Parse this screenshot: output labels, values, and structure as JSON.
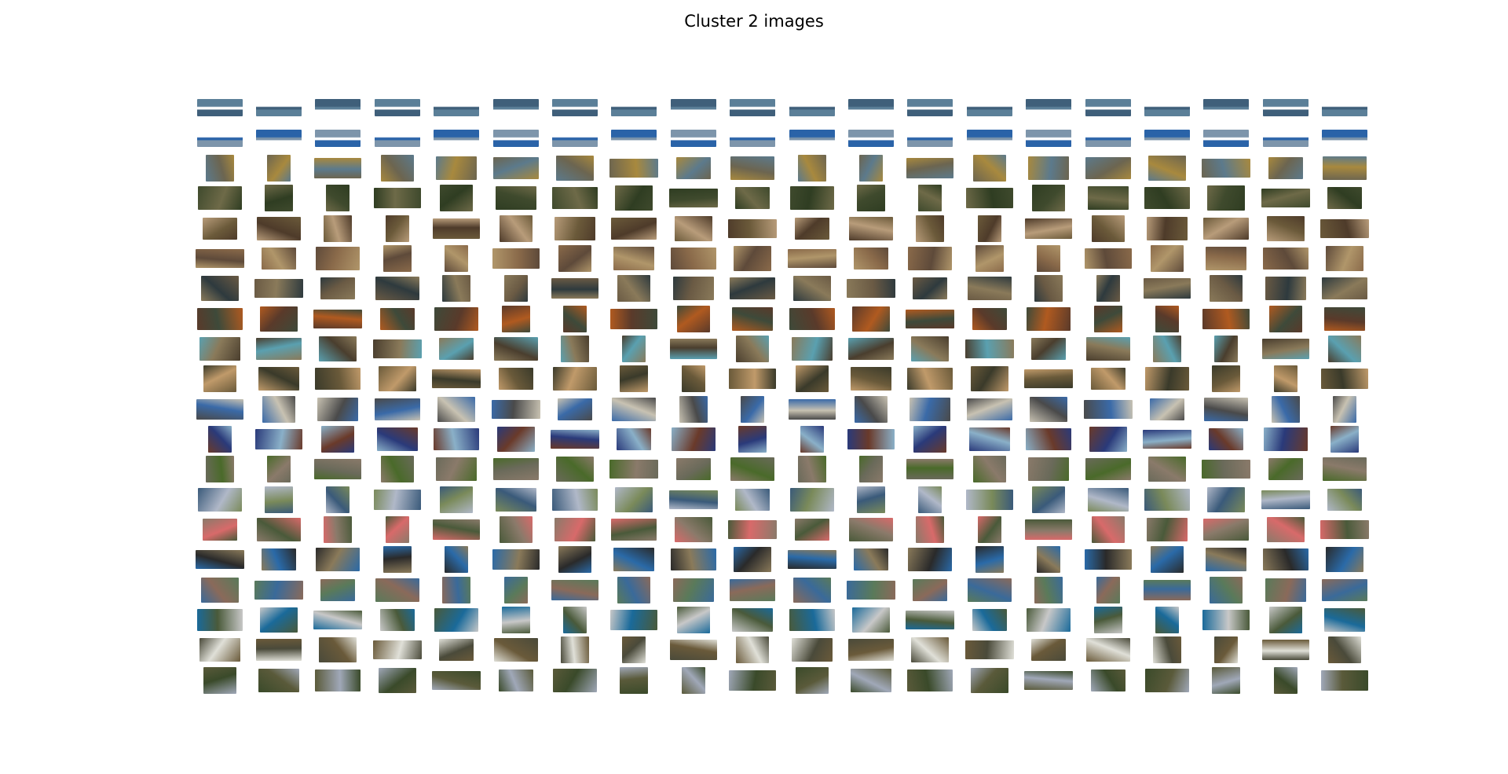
{
  "title": "Cluster 2 images",
  "grid": {
    "rows": 20,
    "cols": 20,
    "row_palettes": [
      [
        "#5b7f98",
        "#ffffff",
        "#3f5f7a"
      ],
      [
        "#7d95ab",
        "#ffffff",
        "#2a63a8"
      ],
      [
        "#6c6550",
        "#a8893e",
        "#5c7a8c"
      ],
      [
        "#3f4a2d",
        "#6e6a48",
        "#2f3d22"
      ],
      [
        "#4e3b2a",
        "#b89c7a",
        "#6b5a3a"
      ],
      [
        "#5e4a3a",
        "#b0966a",
        "#8a6a4a"
      ],
      [
        "#6a5a44",
        "#2e3a3e",
        "#8a7a5a"
      ],
      [
        "#5a3a2a",
        "#b05a20",
        "#3e4a3a"
      ],
      [
        "#8a7a5a",
        "#5aa0b0",
        "#4a3e2e"
      ],
      [
        "#6a5a3a",
        "#c09a6a",
        "#3a3a2a"
      ],
      [
        "#c8c2b2",
        "#4a4a4a",
        "#3a6aa8"
      ],
      [
        "#2a3a7a",
        "#8ab0c8",
        "#6a3a2a"
      ],
      [
        "#6a6a5a",
        "#4a6a2a",
        "#8a7a6a"
      ],
      [
        "#7a8a5a",
        "#3a5a7a",
        "#b0b8c8"
      ],
      [
        "#d86a6a",
        "#4a5a3a",
        "#8a7a6a"
      ],
      [
        "#8a7a5a",
        "#2a2a2a",
        "#2a6aa8"
      ],
      [
        "#3a6a9a",
        "#5a7a5a",
        "#8a6a5a"
      ],
      [
        "#4a5a3a",
        "#1a6a9a",
        "#c8c8c8"
      ],
      [
        "#6a5a3a",
        "#e0e0d8",
        "#4a4a3a"
      ],
      [
        "#5a5a3a",
        "#a0a8b8",
        "#3a4a2a"
      ]
    ]
  }
}
